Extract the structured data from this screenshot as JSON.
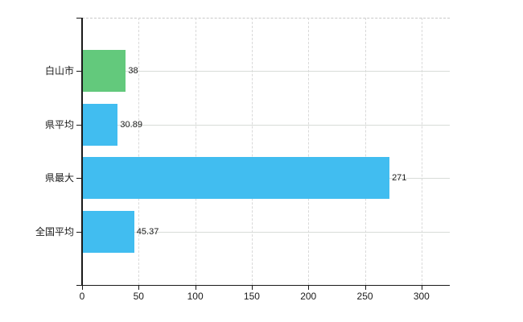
{
  "chart_data": {
    "type": "bar",
    "orientation": "horizontal",
    "categories": [
      "白山市",
      "県平均",
      "県最大",
      "全国平均"
    ],
    "values": [
      38,
      30.89,
      271,
      45.37
    ],
    "value_labels": [
      "38",
      "30.89",
      "271",
      "45.37"
    ],
    "series": [
      {
        "name": "白山市",
        "value": 38,
        "color": "#63c97c"
      },
      {
        "name": "県平均",
        "value": 30.89,
        "color": "#41bdf0"
      },
      {
        "name": "県最大",
        "value": 271,
        "color": "#41bdf0"
      },
      {
        "name": "全国平均",
        "value": 45.37,
        "color": "#41bdf0"
      }
    ],
    "bar_colors": [
      "#63c97c",
      "#41bdf0",
      "#41bdf0",
      "#41bdf0"
    ],
    "xlim": [
      0,
      325
    ],
    "x_ticks": [
      0,
      50,
      100,
      150,
      200,
      250,
      300
    ],
    "grid": true,
    "legend_position": "none"
  },
  "colors": {
    "highlight_bar": "#63c97c",
    "default_bar": "#41bdf0",
    "horizontal_gridline": "#d8dcd8",
    "vertical_gridline": "#d9d9d9",
    "top_border": "#c9c9c9",
    "axis": "#1a1a1a",
    "text": "#1a1a1a",
    "background": "#ffffff"
  }
}
